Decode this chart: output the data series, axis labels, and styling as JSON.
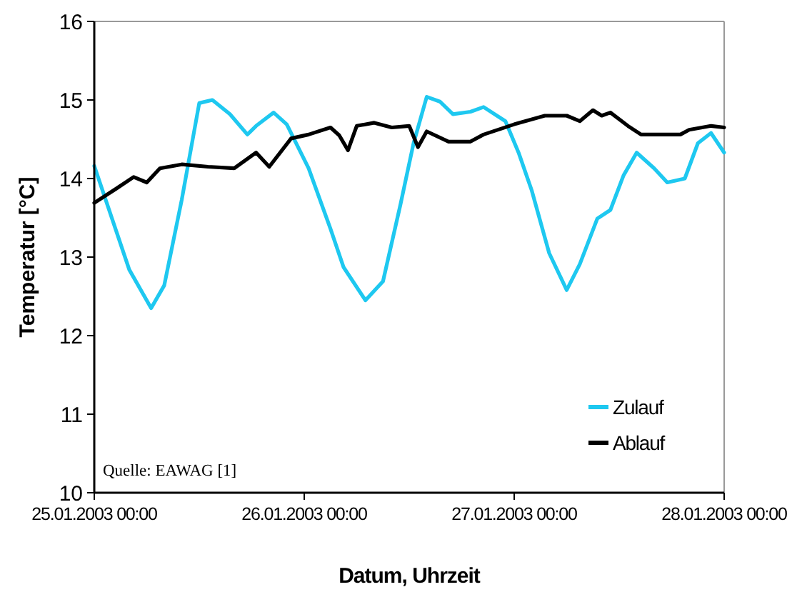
{
  "chart_data": {
    "type": "line",
    "xlabel": "Datum, Uhrzeit",
    "ylabel": "Temperatur [°C]",
    "xlim": [
      "2003-01-25T00:00",
      "2003-01-28T00:00"
    ],
    "xticks": [
      {
        "value": "2003-01-25T00:00",
        "label": "25.01.2003 00:00"
      },
      {
        "value": "2003-01-26T00:00",
        "label": "26.01.2003 00:00"
      },
      {
        "value": "2003-01-27T00:00",
        "label": "27.01.2003 00:00"
      },
      {
        "value": "2003-01-28T00:00",
        "label": "28.01.2003 00:00"
      }
    ],
    "ylim": [
      10,
      16
    ],
    "yticks": [
      10,
      11,
      12,
      13,
      14,
      15,
      16
    ],
    "grid": false,
    "legend": "bottom right",
    "marker": "none",
    "line_style": "solid",
    "annotations": [
      "Quelle: EAWAG [1]"
    ],
    "series": [
      {
        "name": "Zulauf",
        "color": "#1ec8f0",
        "x": [
          "2003-01-25T00:00",
          "2003-01-25T04:00",
          "2003-01-25T06:30",
          "2003-01-25T08:00",
          "2003-01-25T10:00",
          "2003-01-25T12:00",
          "2003-01-25T13:30",
          "2003-01-25T15:30",
          "2003-01-25T17:30",
          "2003-01-25T18:30",
          "2003-01-25T20:30",
          "2003-01-25T22:00",
          "2003-01-26T00:30",
          "2003-01-26T03:00",
          "2003-01-26T04:30",
          "2003-01-26T07:00",
          "2003-01-26T09:00",
          "2003-01-26T11:00",
          "2003-01-26T12:30",
          "2003-01-26T14:00",
          "2003-01-26T15:30",
          "2003-01-26T17:00",
          "2003-01-26T19:00",
          "2003-01-26T20:30",
          "2003-01-26T23:00",
          "2003-01-27T00:30",
          "2003-01-27T02:00",
          "2003-01-27T04:00",
          "2003-01-27T06:00",
          "2003-01-27T07:30",
          "2003-01-27T09:30",
          "2003-01-27T11:00",
          "2003-01-27T12:30",
          "2003-01-27T14:00",
          "2003-01-27T16:00",
          "2003-01-27T17:30",
          "2003-01-27T19:30",
          "2003-01-27T21:00",
          "2003-01-27T22:30",
          "2003-01-28T00:00"
        ],
        "values": [
          14.16,
          12.84,
          12.35,
          12.64,
          13.73,
          14.96,
          15.0,
          14.82,
          14.56,
          14.67,
          14.84,
          14.69,
          14.13,
          13.36,
          12.87,
          12.45,
          12.69,
          13.67,
          14.45,
          15.04,
          14.98,
          14.82,
          14.85,
          14.91,
          14.73,
          14.33,
          13.85,
          13.05,
          12.58,
          12.91,
          13.49,
          13.6,
          14.04,
          14.33,
          14.13,
          13.95,
          14.0,
          14.45,
          14.58,
          14.33
        ]
      },
      {
        "name": "Ablauf",
        "color": "#000000",
        "x": [
          "2003-01-25T00:00",
          "2003-01-25T02:30",
          "2003-01-25T04:30",
          "2003-01-25T06:00",
          "2003-01-25T07:30",
          "2003-01-25T10:00",
          "2003-01-25T13:00",
          "2003-01-25T16:00",
          "2003-01-25T18:30",
          "2003-01-25T20:00",
          "2003-01-25T22:30",
          "2003-01-26T00:30",
          "2003-01-26T03:00",
          "2003-01-26T04:00",
          "2003-01-26T05:00",
          "2003-01-26T06:00",
          "2003-01-26T08:00",
          "2003-01-26T10:00",
          "2003-01-26T12:00",
          "2003-01-26T13:00",
          "2003-01-26T14:00",
          "2003-01-26T16:30",
          "2003-01-26T19:00",
          "2003-01-26T20:30",
          "2003-01-27T00:00",
          "2003-01-27T03:30",
          "2003-01-27T06:00",
          "2003-01-27T07:30",
          "2003-01-27T09:00",
          "2003-01-27T10:00",
          "2003-01-27T11:00",
          "2003-01-27T13:00",
          "2003-01-27T14:30",
          "2003-01-27T19:00",
          "2003-01-27T20:00",
          "2003-01-27T22:30",
          "2003-01-28T00:00"
        ],
        "values": [
          13.69,
          13.87,
          14.02,
          13.95,
          14.13,
          14.18,
          14.15,
          14.13,
          14.33,
          14.15,
          14.51,
          14.56,
          14.65,
          14.55,
          14.36,
          14.67,
          14.71,
          14.65,
          14.67,
          14.4,
          14.6,
          14.47,
          14.47,
          14.56,
          14.69,
          14.8,
          14.8,
          14.73,
          14.87,
          14.8,
          14.84,
          14.67,
          14.56,
          14.56,
          14.62,
          14.67,
          14.65
        ]
      }
    ]
  }
}
